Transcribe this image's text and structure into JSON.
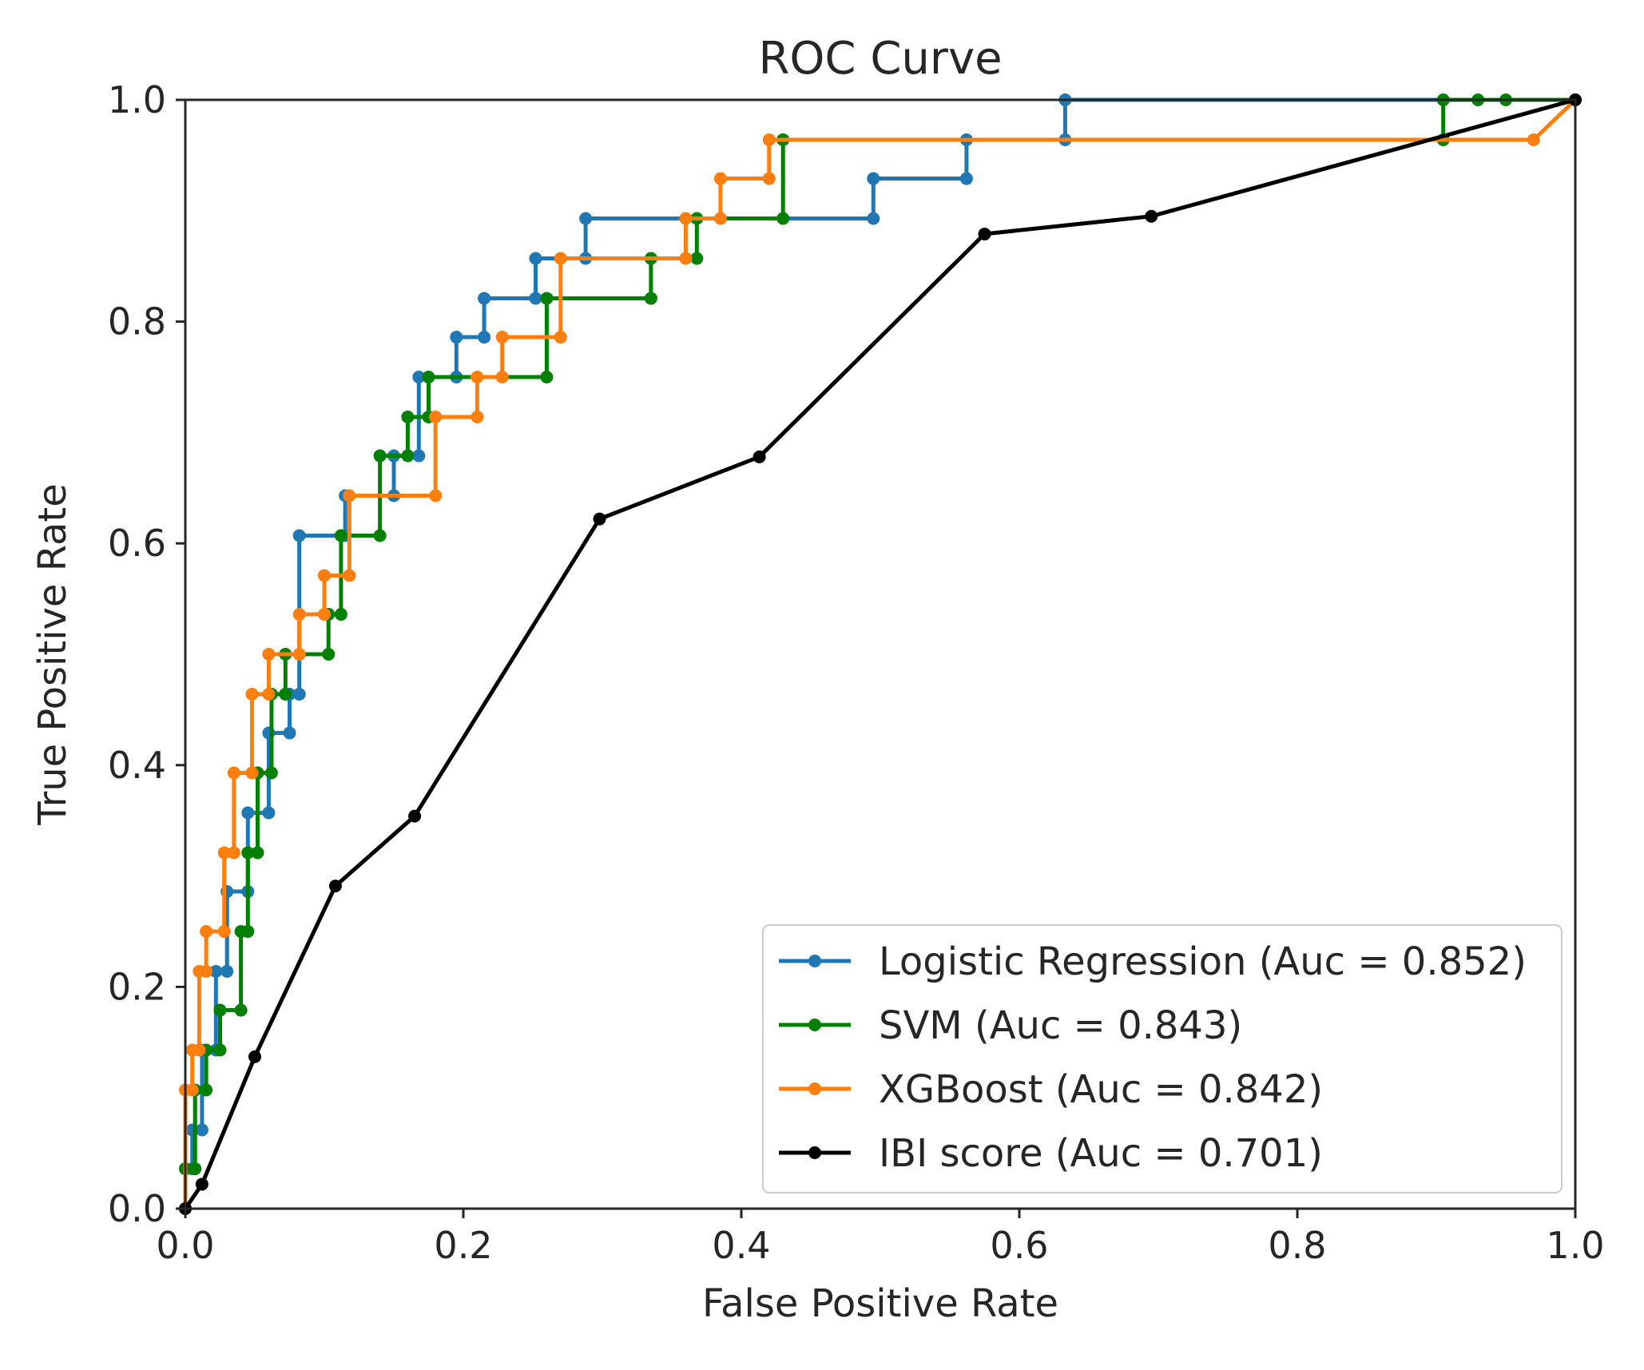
{
  "chart_data": {
    "type": "line",
    "title": "ROC Curve",
    "xlabel": "False Positive Rate",
    "ylabel": "True Positive Rate",
    "xlim": [
      0.0,
      1.0
    ],
    "ylim": [
      0.0,
      1.0
    ],
    "xticks": [
      "0.0",
      "0.2",
      "0.4",
      "0.6",
      "0.8",
      "1.0"
    ],
    "yticks": [
      "0.0",
      "0.2",
      "0.4",
      "0.6",
      "0.8",
      "1.0"
    ],
    "grid": false,
    "legend_position": "lower-right",
    "series": [
      {
        "name": "Logistic Regression (Auc = 0.852)",
        "color": "#1f77b4",
        "x": [
          0.0,
          0.0,
          0.005,
          0.005,
          0.012,
          0.012,
          0.022,
          0.022,
          0.03,
          0.03,
          0.045,
          0.045,
          0.06,
          0.06,
          0.075,
          0.075,
          0.082,
          0.082,
          0.115,
          0.115,
          0.15,
          0.15,
          0.168,
          0.168,
          0.195,
          0.195,
          0.215,
          0.215,
          0.252,
          0.252,
          0.288,
          0.288,
          0.495,
          0.495,
          0.562,
          0.562,
          0.633,
          0.633,
          1.0
        ],
        "y": [
          0.0,
          0.036,
          0.036,
          0.071,
          0.071,
          0.143,
          0.143,
          0.214,
          0.214,
          0.286,
          0.286,
          0.357,
          0.357,
          0.429,
          0.429,
          0.464,
          0.464,
          0.607,
          0.607,
          0.643,
          0.643,
          0.679,
          0.679,
          0.75,
          0.75,
          0.786,
          0.786,
          0.821,
          0.821,
          0.857,
          0.857,
          0.893,
          0.893,
          0.929,
          0.929,
          0.964,
          0.964,
          1.0,
          1.0
        ]
      },
      {
        "name": "SVM (Auc = 0.843)",
        "color": "#008000",
        "x": [
          0.0,
          0.0,
          0.007,
          0.007,
          0.015,
          0.015,
          0.025,
          0.025,
          0.04,
          0.04,
          0.045,
          0.045,
          0.052,
          0.052,
          0.062,
          0.062,
          0.072,
          0.072,
          0.103,
          0.103,
          0.112,
          0.112,
          0.14,
          0.14,
          0.16,
          0.16,
          0.175,
          0.175,
          0.26,
          0.26,
          0.335,
          0.335,
          0.368,
          0.368,
          0.43,
          0.43,
          0.905,
          0.905,
          0.93,
          0.95,
          1.0
        ],
        "y": [
          0.0,
          0.036,
          0.036,
          0.107,
          0.107,
          0.143,
          0.143,
          0.179,
          0.179,
          0.25,
          0.25,
          0.321,
          0.321,
          0.393,
          0.393,
          0.464,
          0.464,
          0.5,
          0.5,
          0.536,
          0.536,
          0.607,
          0.607,
          0.679,
          0.679,
          0.714,
          0.714,
          0.75,
          0.75,
          0.821,
          0.821,
          0.857,
          0.857,
          0.893,
          0.893,
          0.964,
          0.964,
          1.0,
          1.0,
          1.0,
          1.0
        ]
      },
      {
        "name": "XGBoost (Auc = 0.842)",
        "color": "#ff7f0e",
        "x": [
          0.0,
          0.0,
          0.005,
          0.005,
          0.01,
          0.01,
          0.015,
          0.015,
          0.028,
          0.028,
          0.035,
          0.035,
          0.048,
          0.048,
          0.06,
          0.06,
          0.082,
          0.082,
          0.1,
          0.1,
          0.118,
          0.118,
          0.18,
          0.18,
          0.21,
          0.21,
          0.228,
          0.228,
          0.27,
          0.27,
          0.36,
          0.36,
          0.385,
          0.385,
          0.42,
          0.42,
          0.97,
          1.0
        ],
        "y": [
          0.0,
          0.107,
          0.107,
          0.143,
          0.143,
          0.214,
          0.214,
          0.25,
          0.25,
          0.321,
          0.321,
          0.393,
          0.393,
          0.464,
          0.464,
          0.5,
          0.5,
          0.536,
          0.536,
          0.571,
          0.571,
          0.643,
          0.643,
          0.714,
          0.714,
          0.75,
          0.75,
          0.786,
          0.786,
          0.857,
          0.857,
          0.893,
          0.893,
          0.929,
          0.929,
          0.964,
          0.964,
          1.0
        ]
      },
      {
        "name": "IBI score (Auc = 0.701)",
        "color": "#000000",
        "x": [
          0.0,
          0.012,
          0.05,
          0.108,
          0.165,
          0.298,
          0.413,
          0.575,
          0.695,
          1.0
        ],
        "y": [
          0.0,
          0.022,
          0.137,
          0.291,
          0.354,
          0.622,
          0.678,
          0.879,
          0.895,
          1.0
        ]
      }
    ]
  }
}
